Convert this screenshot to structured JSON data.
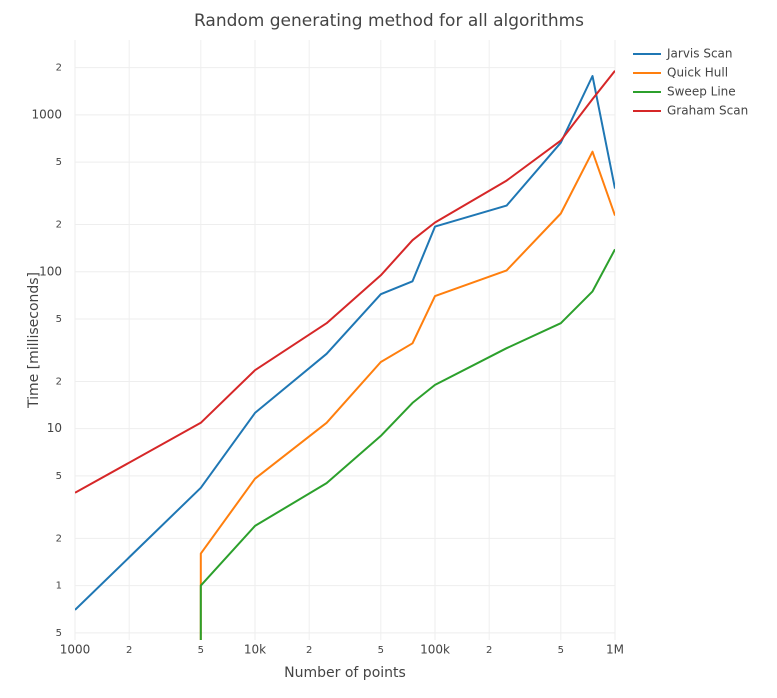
{
  "chart_data": {
    "type": "line",
    "title": "Random generating method for all algorithms",
    "x_label": "Number of points",
    "y_label": "Time [milliseconds]",
    "x": [
      1000,
      5000,
      10000,
      25000,
      50000,
      75000,
      100000,
      250000,
      500000,
      750000,
      1000000
    ],
    "series": [
      {
        "name": "Jarvis Scan",
        "color": "#1f77b4",
        "values": [
          0.7,
          4.2,
          12.6,
          30,
          72,
          87,
          194,
          264,
          665,
          1770,
          339
        ]
      },
      {
        "name": "Quick Hull",
        "color": "#ff7f0e",
        "values": [
          0,
          1.6,
          4.8,
          10.9,
          26.6,
          35,
          70,
          102,
          235,
          582,
          228
        ]
      },
      {
        "name": "Sweep Line",
        "color": "#2ca02c",
        "values": [
          0,
          1.0,
          2.4,
          4.5,
          9.0,
          14.6,
          19,
          32.6,
          47,
          75,
          139
        ]
      },
      {
        "name": "Graham Scan",
        "color": "#d62728",
        "values": [
          3.9,
          10.9,
          23.6,
          47,
          95,
          159,
          206,
          381,
          685,
          1260,
          1910
        ]
      }
    ],
    "xscale": "log",
    "yscale": "log",
    "xlim": [
      1000,
      1000000
    ],
    "ylim": [
      0.45,
      3000
    ],
    "xticks": [
      1000,
      {
        "value": 2000,
        "label": "2"
      },
      {
        "value": 5000,
        "label": "5"
      },
      {
        "value": 10000,
        "label": "10k"
      },
      {
        "value": 20000,
        "label": "2"
      },
      {
        "value": 50000,
        "label": "5"
      },
      {
        "value": 100000,
        "label": "100k"
      },
      {
        "value": 200000,
        "label": "2"
      },
      {
        "value": 500000,
        "label": "5"
      },
      {
        "value": 1000000,
        "label": "1M"
      }
    ],
    "yticks": [
      {
        "value": 0.5,
        "label": "5"
      },
      1,
      2,
      5,
      10,
      {
        "value": 20,
        "label": "2"
      },
      {
        "value": 50,
        "label": "5"
      },
      100,
      {
        "value": 200,
        "label": "2"
      },
      {
        "value": 500,
        "label": "5"
      },
      1000,
      {
        "value": 2000,
        "label": "2"
      }
    ],
    "grid": true,
    "legend": "right"
  }
}
